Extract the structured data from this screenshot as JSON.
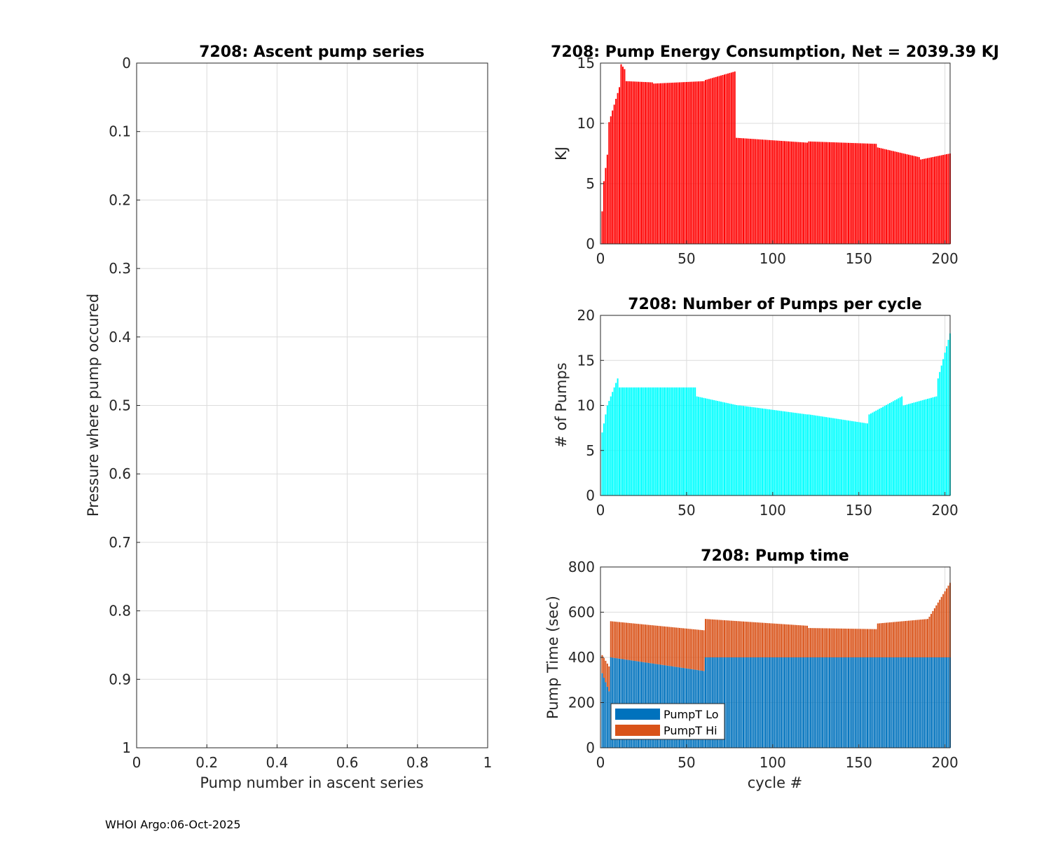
{
  "footer": "WHOI Argo:06-Oct-2025",
  "chart_data": [
    {
      "type": "line",
      "title": "7208: Ascent pump series",
      "xlabel": "Pump number in ascent series",
      "ylabel": "Pressure where pump occured",
      "xlim": [
        0,
        1
      ],
      "ylim": [
        0,
        1
      ],
      "y_reversed": true,
      "xticks": [
        "0",
        "0.2",
        "0.4",
        "0.6",
        "0.8",
        "1"
      ],
      "yticks": [
        "0",
        "0.1",
        "0.2",
        "0.3",
        "0.4",
        "0.5",
        "0.6",
        "0.7",
        "0.8",
        "0.9",
        "1"
      ],
      "series": []
    },
    {
      "type": "bar",
      "title": "7208: Pump Energy Consumption,  Net = 2039.39 KJ",
      "xlabel": "",
      "ylabel": "KJ",
      "xlim": [
        0,
        203
      ],
      "ylim": [
        0,
        15
      ],
      "xticks": [
        "0",
        "50",
        "100",
        "150",
        "200"
      ],
      "yticks": [
        "0",
        "5",
        "10",
        "15"
      ],
      "color": "#ff0000",
      "segments": [
        {
          "from": 1,
          "to": 1,
          "start": 2.7,
          "end": 2.7
        },
        {
          "from": 2,
          "to": 4,
          "start": 5.2,
          "end": 7.4
        },
        {
          "from": 5,
          "to": 11,
          "start": 10.1,
          "end": 13.0
        },
        {
          "from": 12,
          "to": 14,
          "start": 14.9,
          "end": 14.5
        },
        {
          "from": 15,
          "to": 30,
          "start": 13.5,
          "end": 13.4
        },
        {
          "from": 31,
          "to": 60,
          "start": 13.3,
          "end": 13.5
        },
        {
          "from": 61,
          "to": 78,
          "start": 13.6,
          "end": 14.3
        },
        {
          "from": 79,
          "to": 120,
          "start": 8.8,
          "end": 8.4
        },
        {
          "from": 121,
          "to": 160,
          "start": 8.5,
          "end": 8.3
        },
        {
          "from": 161,
          "to": 185,
          "start": 8.0,
          "end": 7.2
        },
        {
          "from": 186,
          "to": 203,
          "start": 7.0,
          "end": 7.5
        }
      ]
    },
    {
      "type": "bar",
      "title": "7208: Number of Pumps per cycle",
      "xlabel": "",
      "ylabel": "# of Pumps",
      "xlim": [
        0,
        203
      ],
      "ylim": [
        0,
        20
      ],
      "xticks": [
        "0",
        "50",
        "100",
        "150",
        "200"
      ],
      "yticks": [
        "0",
        "5",
        "10",
        "15",
        "20"
      ],
      "color": "#00ffff",
      "segments": [
        {
          "from": 1,
          "to": 3,
          "start": 7,
          "end": 9
        },
        {
          "from": 4,
          "to": 10,
          "start": 10,
          "end": 13
        },
        {
          "from": 11,
          "to": 55,
          "start": 12,
          "end": 12
        },
        {
          "from": 56,
          "to": 80,
          "start": 11,
          "end": 10
        },
        {
          "from": 81,
          "to": 120,
          "start": 10,
          "end": 9
        },
        {
          "from": 121,
          "to": 155,
          "start": 9,
          "end": 8
        },
        {
          "from": 156,
          "to": 175,
          "start": 9,
          "end": 11
        },
        {
          "from": 176,
          "to": 195,
          "start": 10,
          "end": 11
        },
        {
          "from": 196,
          "to": 203,
          "start": 13,
          "end": 18
        }
      ]
    },
    {
      "type": "bar",
      "stacked": true,
      "title": "7208: Pump time",
      "xlabel": "cycle #",
      "ylabel": "Pump Time (sec)",
      "xlim": [
        0,
        203
      ],
      "ylim": [
        0,
        800
      ],
      "xticks": [
        "0",
        "50",
        "100",
        "150",
        "200"
      ],
      "yticks": [
        "0",
        "200",
        "400",
        "600",
        "800"
      ],
      "legend": {
        "placement": "bottom-left",
        "entries": [
          "PumpT Lo",
          "PumpT Hi"
        ]
      },
      "series": [
        {
          "name": "PumpT Lo",
          "color": "#0072bd",
          "segments": [
            {
              "from": 1,
              "to": 5,
              "start": 330,
              "end": 250
            },
            {
              "from": 6,
              "to": 60,
              "start": 400,
              "end": 340
            },
            {
              "from": 61,
              "to": 203,
              "start": 400,
              "end": 400
            }
          ]
        },
        {
          "name": "PumpT Hi",
          "color": "#d95319",
          "segments": [
            {
              "from": 1,
              "to": 5,
              "start": 80,
              "end": 110
            },
            {
              "from": 6,
              "to": 60,
              "start": 160,
              "end": 180
            },
            {
              "from": 61,
              "to": 120,
              "start": 170,
              "end": 140
            },
            {
              "from": 121,
              "to": 160,
              "start": 130,
              "end": 125
            },
            {
              "from": 161,
              "to": 190,
              "start": 150,
              "end": 170
            },
            {
              "from": 191,
              "to": 203,
              "start": 180,
              "end": 330
            }
          ]
        }
      ]
    }
  ]
}
